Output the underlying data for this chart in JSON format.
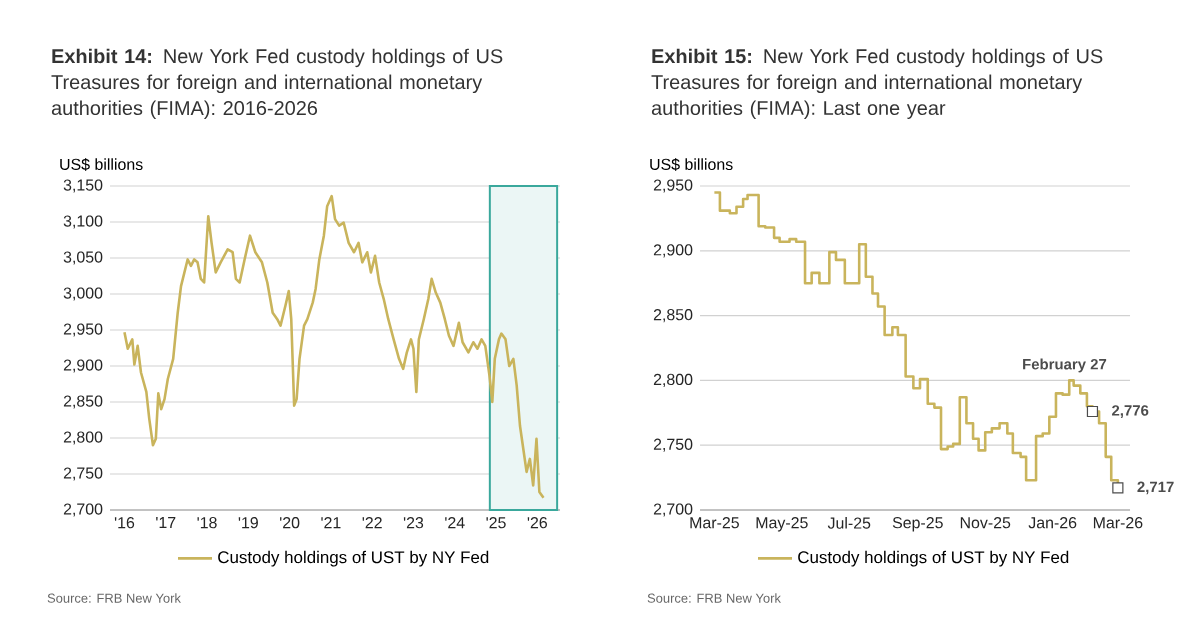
{
  "chart_data": [
    {
      "type": "line",
      "title": "**Exhibit 14:** New York Fed custody holdings of US Treasures for foreign and international monetary authorities (FIMA): 2016-2026",
      "ylabel": "US$ billions",
      "xlim": [
        2015.65,
        2026.55
      ],
      "ylim": [
        2700,
        3150
      ],
      "xticks": [
        {
          "value": 2016,
          "label": "'16"
        },
        {
          "value": 2017,
          "label": "'17"
        },
        {
          "value": 2018,
          "label": "'18"
        },
        {
          "value": 2019,
          "label": "'19"
        },
        {
          "value": 2020,
          "label": "'20"
        },
        {
          "value": 2021,
          "label": "'21"
        },
        {
          "value": 2022,
          "label": "'22"
        },
        {
          "value": 2023,
          "label": "'23"
        },
        {
          "value": 2024,
          "label": "'24"
        },
        {
          "value": 2025,
          "label": "'25"
        },
        {
          "value": 2026,
          "label": "'26"
        }
      ],
      "yticks": [
        {
          "value": 2700,
          "label": "2,700"
        },
        {
          "value": 2750,
          "label": "2,750"
        },
        {
          "value": 2800,
          "label": "2,800"
        },
        {
          "value": 2850,
          "label": "2,850"
        },
        {
          "value": 2900,
          "label": "2,900"
        },
        {
          "value": 2950,
          "label": "2,950"
        },
        {
          "value": 3000,
          "label": "3,000"
        },
        {
          "value": 3050,
          "label": "3,050"
        },
        {
          "value": 3100,
          "label": "3,100"
        },
        {
          "value": 3150,
          "label": "3,150"
        }
      ],
      "grid": "y",
      "legend": "bottom",
      "bands": [
        {
          "axis": "x",
          "from": 2024.85,
          "to": 2026.48,
          "color": "#3aa89c"
        }
      ],
      "series": [
        {
          "name": "Custody holdings of UST by NY Fed",
          "color": "#c9b45c",
          "x": [
            2016.0,
            2016.08,
            2016.19,
            2016.24,
            2016.32,
            2016.4,
            2016.53,
            2016.6,
            2016.69,
            2016.76,
            2016.82,
            2016.89,
            2016.97,
            2017.05,
            2017.18,
            2017.29,
            2017.37,
            2017.53,
            2017.61,
            2017.69,
            2017.77,
            2017.85,
            2017.93,
            2018.03,
            2018.11,
            2018.21,
            2018.33,
            2018.5,
            2018.62,
            2018.7,
            2018.79,
            2018.91,
            2019.04,
            2019.17,
            2019.33,
            2019.46,
            2019.59,
            2019.7,
            2019.78,
            2019.9,
            2019.98,
            2020.04,
            2020.11,
            2020.17,
            2020.24,
            2020.35,
            2020.43,
            2020.56,
            2020.63,
            2020.72,
            2020.83,
            2020.91,
            2021.02,
            2021.1,
            2021.2,
            2021.31,
            2021.43,
            2021.56,
            2021.67,
            2021.76,
            2021.88,
            2021.97,
            2022.07,
            2022.17,
            2022.28,
            2022.39,
            2022.52,
            2022.65,
            2022.75,
            2022.84,
            2022.94,
            2023.0,
            2023.07,
            2023.13,
            2023.25,
            2023.36,
            2023.44,
            2023.54,
            2023.65,
            2023.76,
            2023.86,
            2023.97,
            2024.1,
            2024.19,
            2024.33,
            2024.45,
            2024.55,
            2024.65,
            2024.74,
            2024.84,
            2024.91,
            2024.97,
            2025.07,
            2025.13,
            2025.23,
            2025.32,
            2025.42,
            2025.5,
            2025.58,
            2025.66,
            2025.74,
            2025.82,
            2025.9,
            2025.98,
            2026.05,
            2026.15
          ],
          "values": [
            2947,
            2924,
            2937,
            2902,
            2928,
            2891,
            2864,
            2827,
            2790,
            2799,
            2862,
            2840,
            2854,
            2882,
            2910,
            2974,
            3011,
            3048,
            3039,
            3048,
            3044,
            3021,
            3016,
            3108,
            3071,
            3030,
            3044,
            3062,
            3058,
            3021,
            3016,
            3048,
            3081,
            3058,
            3044,
            3016,
            2974,
            2965,
            2956,
            2984,
            3004,
            2965,
            2845,
            2854,
            2910,
            2956,
            2965,
            2988,
            3007,
            3048,
            3081,
            3122,
            3136,
            3104,
            3095,
            3099,
            3071,
            3058,
            3071,
            3044,
            3058,
            3030,
            3053,
            3016,
            2993,
            2965,
            2937,
            2910,
            2896,
            2919,
            2937,
            2924,
            2864,
            2937,
            2965,
            2993,
            3021,
            3002,
            2988,
            2965,
            2942,
            2928,
            2960,
            2933,
            2919,
            2933,
            2924,
            2937,
            2928,
            2887,
            2850,
            2910,
            2937,
            2945,
            2937,
            2900,
            2910,
            2873,
            2817,
            2785,
            2753,
            2771,
            2734,
            2799,
            2725,
            2717
          ]
        }
      ],
      "annotations": [
        "Source: FRB New York"
      ]
    },
    {
      "type": "step",
      "title": "**Exhibit 15:** New York Fed custody holdings of US Treasures for foreign and international monetary authorities (FIMA): Last one year",
      "ylabel": "US$ billions",
      "xlim": [
        "2025-02-16",
        "2026-03-12"
      ],
      "ylim": [
        2700,
        2950
      ],
      "xticks": [
        {
          "value": "2025-03-01",
          "label": "Mar-25"
        },
        {
          "value": "2025-05-01",
          "label": "May-25"
        },
        {
          "value": "2025-07-01",
          "label": "Jul-25"
        },
        {
          "value": "2025-09-01",
          "label": "Sep-25"
        },
        {
          "value": "2025-11-01",
          "label": "Nov-25"
        },
        {
          "value": "2026-01-01",
          "label": "Jan-26"
        },
        {
          "value": "2026-03-01",
          "label": "Mar-26"
        }
      ],
      "yticks": [
        {
          "value": 2700,
          "label": "2,700"
        },
        {
          "value": 2750,
          "label": "2,750"
        },
        {
          "value": 2800,
          "label": "2,800"
        },
        {
          "value": 2850,
          "label": "2,850"
        },
        {
          "value": 2900,
          "label": "2,900"
        },
        {
          "value": 2950,
          "label": "2,950"
        }
      ],
      "grid": "y",
      "legend": "bottom",
      "series": [
        {
          "name": "Custody holdings of UST by NY Fed",
          "color": "#c9b45c",
          "x": [
            "2025-03-01",
            "2025-03-06",
            "2025-03-15",
            "2025-03-21",
            "2025-03-27",
            "2025-03-31",
            "2025-04-10",
            "2025-04-16",
            "2025-04-24",
            "2025-04-29",
            "2025-05-08",
            "2025-05-14",
            "2025-05-22",
            "2025-05-28",
            "2025-06-04",
            "2025-06-13",
            "2025-06-19",
            "2025-06-27",
            "2025-07-10",
            "2025-07-16",
            "2025-07-22",
            "2025-07-27",
            "2025-08-02",
            "2025-08-09",
            "2025-08-14",
            "2025-08-21",
            "2025-08-28",
            "2025-09-03",
            "2025-09-10",
            "2025-09-16",
            "2025-09-22",
            "2025-09-28",
            "2025-10-03",
            "2025-10-09",
            "2025-10-15",
            "2025-10-21",
            "2025-10-26",
            "2025-11-01",
            "2025-11-07",
            "2025-11-14",
            "2025-11-21",
            "2025-11-26",
            "2025-12-03",
            "2025-12-08",
            "2025-12-17",
            "2025-12-23",
            "2025-12-29",
            "2026-01-04",
            "2026-01-10",
            "2026-01-16",
            "2026-01-20",
            "2026-01-26",
            "2026-02-01",
            "2026-02-06",
            "2026-02-12",
            "2026-02-18",
            "2026-02-23",
            "2026-03-01"
          ],
          "values": [
            2945,
            2931,
            2929,
            2934,
            2940,
            2943,
            2919,
            2918,
            2910,
            2907,
            2909,
            2907,
            2875,
            2883,
            2875,
            2899,
            2893,
            2875,
            2905,
            2880,
            2867,
            2857,
            2835,
            2841,
            2835,
            2803,
            2794,
            2801,
            2782,
            2779,
            2747,
            2749,
            2751,
            2787,
            2767,
            2755,
            2746,
            2760,
            2763,
            2767,
            2759,
            2744,
            2741,
            2723,
            2757,
            2759,
            2772,
            2790,
            2789,
            2800,
            2796,
            2790,
            2780,
            2776,
            2767,
            2741,
            2723,
            2717
          ]
        }
      ],
      "annotations": [
        {
          "text": "2,776",
          "x": "2026-02-06",
          "y": 2776
        },
        {
          "text": "February 27",
          "x": "2026-02-06",
          "y": 2776
        },
        {
          "text": "2,717",
          "x": "2026-03-01",
          "y": 2717
        },
        "Source: FRB New York"
      ]
    }
  ]
}
